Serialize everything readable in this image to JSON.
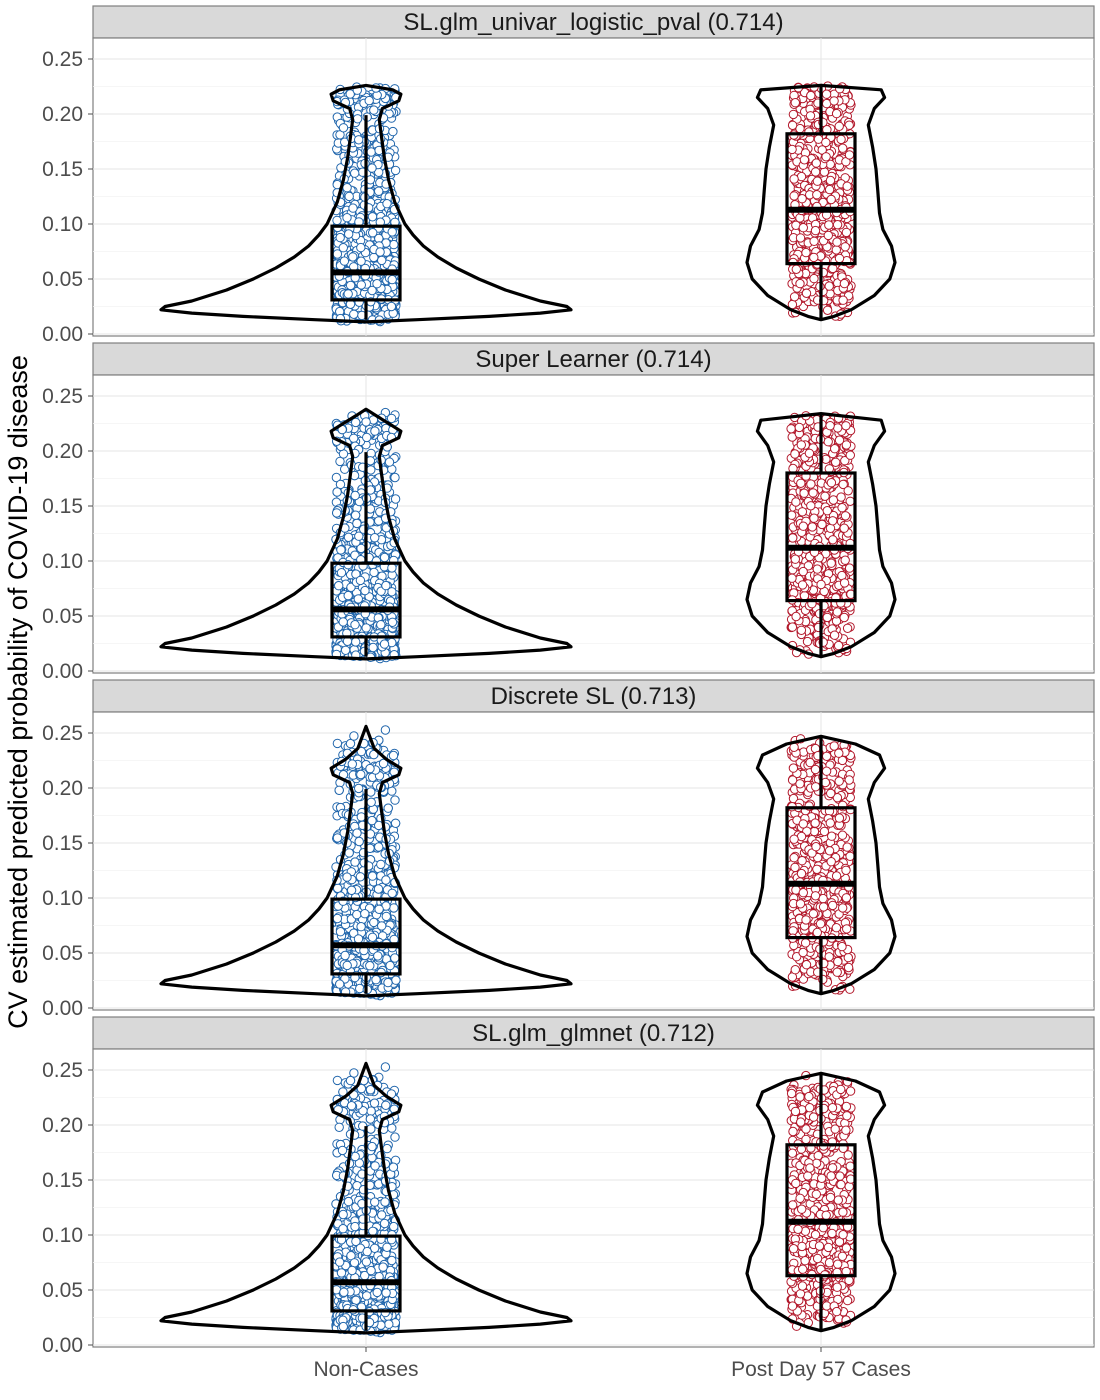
{
  "chart_data": {
    "type": "violin",
    "ylabel": "CV estimated predicted probability of COVID-19 disease",
    "xlabel": "",
    "categories": [
      "Non-Cases",
      "Post Day 57 Cases"
    ],
    "ylim": [
      0.0,
      0.26
    ],
    "yticks": [
      "0.00",
      "0.05",
      "0.10",
      "0.15",
      "0.20",
      "0.25"
    ],
    "grid": true,
    "point_colors": {
      "Non-Cases": "#2166ac",
      "Post Day 57 Cases": "#b2182b"
    },
    "panels": [
      {
        "title": "SL.glm_univar_logistic_pval (0.714)",
        "groups": [
          {
            "category": "Non-Cases",
            "box": {
              "lower": 0.013,
              "q1": 0.031,
              "median": 0.056,
              "q3": 0.098,
              "upper": 0.199
            },
            "range": [
              0.011,
              0.226
            ],
            "violin": [
              [
                0.011,
                0.0
              ],
              [
                0.013,
                0.25
              ],
              [
                0.016,
                0.6
              ],
              [
                0.019,
                0.85
              ],
              [
                0.022,
                1.0
              ],
              [
                0.025,
                0.98
              ],
              [
                0.03,
                0.85
              ],
              [
                0.04,
                0.68
              ],
              [
                0.05,
                0.55
              ],
              [
                0.06,
                0.44
              ],
              [
                0.07,
                0.35
              ],
              [
                0.08,
                0.28
              ],
              [
                0.09,
                0.23
              ],
              [
                0.1,
                0.19
              ],
              [
                0.12,
                0.14
              ],
              [
                0.14,
                0.11
              ],
              [
                0.16,
                0.09
              ],
              [
                0.18,
                0.075
              ],
              [
                0.195,
                0.065
              ],
              [
                0.205,
                0.08
              ],
              [
                0.212,
                0.16
              ],
              [
                0.218,
                0.17
              ],
              [
                0.222,
                0.13
              ],
              [
                0.226,
                0.0
              ]
            ]
          },
          {
            "category": "Post Day 57 Cases",
            "box": {
              "lower": 0.013,
              "q1": 0.064,
              "median": 0.113,
              "q3": 0.182,
              "upper": 0.226
            },
            "range": [
              0.013,
              0.226
            ],
            "violin": [
              [
                0.013,
                0.0
              ],
              [
                0.016,
                0.15
              ],
              [
                0.022,
                0.35
              ],
              [
                0.035,
                0.62
              ],
              [
                0.05,
                0.8
              ],
              [
                0.065,
                0.86
              ],
              [
                0.08,
                0.82
              ],
              [
                0.095,
                0.72
              ],
              [
                0.11,
                0.68
              ],
              [
                0.13,
                0.66
              ],
              [
                0.15,
                0.64
              ],
              [
                0.17,
                0.6
              ],
              [
                0.19,
                0.55
              ],
              [
                0.205,
                0.62
              ],
              [
                0.215,
                0.74
              ],
              [
                0.222,
                0.7
              ],
              [
                0.226,
                0.0
              ]
            ]
          }
        ]
      },
      {
        "title": "Super Learner (0.714)",
        "groups": [
          {
            "category": "Non-Cases",
            "box": {
              "lower": 0.013,
              "q1": 0.031,
              "median": 0.056,
              "q3": 0.098,
              "upper": 0.199
            },
            "range": [
              0.011,
              0.238
            ],
            "violin": [
              [
                0.011,
                0.0
              ],
              [
                0.013,
                0.25
              ],
              [
                0.016,
                0.6
              ],
              [
                0.019,
                0.85
              ],
              [
                0.022,
                1.0
              ],
              [
                0.025,
                0.98
              ],
              [
                0.03,
                0.85
              ],
              [
                0.04,
                0.68
              ],
              [
                0.05,
                0.55
              ],
              [
                0.06,
                0.44
              ],
              [
                0.07,
                0.35
              ],
              [
                0.08,
                0.28
              ],
              [
                0.09,
                0.23
              ],
              [
                0.1,
                0.19
              ],
              [
                0.12,
                0.14
              ],
              [
                0.14,
                0.11
              ],
              [
                0.16,
                0.09
              ],
              [
                0.18,
                0.075
              ],
              [
                0.195,
                0.065
              ],
              [
                0.205,
                0.08
              ],
              [
                0.212,
                0.16
              ],
              [
                0.218,
                0.17
              ],
              [
                0.224,
                0.12
              ],
              [
                0.232,
                0.05
              ],
              [
                0.238,
                0.0
              ]
            ]
          },
          {
            "category": "Post Day 57 Cases",
            "box": {
              "lower": 0.013,
              "q1": 0.064,
              "median": 0.112,
              "q3": 0.18,
              "upper": 0.234
            },
            "range": [
              0.013,
              0.234
            ],
            "violin": [
              [
                0.013,
                0.0
              ],
              [
                0.016,
                0.15
              ],
              [
                0.022,
                0.35
              ],
              [
                0.035,
                0.62
              ],
              [
                0.05,
                0.8
              ],
              [
                0.065,
                0.86
              ],
              [
                0.08,
                0.82
              ],
              [
                0.095,
                0.72
              ],
              [
                0.11,
                0.68
              ],
              [
                0.13,
                0.66
              ],
              [
                0.15,
                0.64
              ],
              [
                0.17,
                0.6
              ],
              [
                0.19,
                0.55
              ],
              [
                0.205,
                0.62
              ],
              [
                0.218,
                0.74
              ],
              [
                0.228,
                0.7
              ],
              [
                0.234,
                0.0
              ]
            ]
          }
        ]
      },
      {
        "title": "Discrete SL (0.713)",
        "groups": [
          {
            "category": "Non-Cases",
            "box": {
              "lower": 0.013,
              "q1": 0.031,
              "median": 0.057,
              "q3": 0.099,
              "upper": 0.199
            },
            "range": [
              0.011,
              0.256
            ],
            "violin": [
              [
                0.011,
                0.0
              ],
              [
                0.013,
                0.25
              ],
              [
                0.016,
                0.6
              ],
              [
                0.019,
                0.85
              ],
              [
                0.022,
                1.0
              ],
              [
                0.025,
                0.98
              ],
              [
                0.03,
                0.85
              ],
              [
                0.04,
                0.68
              ],
              [
                0.05,
                0.55
              ],
              [
                0.06,
                0.44
              ],
              [
                0.07,
                0.35
              ],
              [
                0.08,
                0.28
              ],
              [
                0.09,
                0.23
              ],
              [
                0.1,
                0.19
              ],
              [
                0.12,
                0.14
              ],
              [
                0.14,
                0.11
              ],
              [
                0.16,
                0.09
              ],
              [
                0.18,
                0.075
              ],
              [
                0.195,
                0.065
              ],
              [
                0.205,
                0.08
              ],
              [
                0.212,
                0.16
              ],
              [
                0.218,
                0.17
              ],
              [
                0.226,
                0.1
              ],
              [
                0.236,
                0.04
              ],
              [
                0.246,
                0.02
              ],
              [
                0.256,
                0.0
              ]
            ]
          },
          {
            "category": "Post Day 57 Cases",
            "box": {
              "lower": 0.013,
              "q1": 0.064,
              "median": 0.113,
              "q3": 0.182,
              "upper": 0.247
            },
            "range": [
              0.013,
              0.247
            ],
            "violin": [
              [
                0.013,
                0.0
              ],
              [
                0.016,
                0.15
              ],
              [
                0.022,
                0.35
              ],
              [
                0.035,
                0.62
              ],
              [
                0.05,
                0.8
              ],
              [
                0.065,
                0.86
              ],
              [
                0.08,
                0.82
              ],
              [
                0.095,
                0.72
              ],
              [
                0.11,
                0.68
              ],
              [
                0.13,
                0.66
              ],
              [
                0.15,
                0.64
              ],
              [
                0.17,
                0.6
              ],
              [
                0.19,
                0.55
              ],
              [
                0.205,
                0.62
              ],
              [
                0.218,
                0.74
              ],
              [
                0.23,
                0.68
              ],
              [
                0.24,
                0.4
              ],
              [
                0.247,
                0.0
              ]
            ]
          }
        ]
      },
      {
        "title": "SL.glm_glmnet (0.712)",
        "groups": [
          {
            "category": "Non-Cases",
            "box": {
              "lower": 0.013,
              "q1": 0.031,
              "median": 0.057,
              "q3": 0.099,
              "upper": 0.199
            },
            "range": [
              0.011,
              0.256
            ],
            "violin": [
              [
                0.011,
                0.0
              ],
              [
                0.013,
                0.25
              ],
              [
                0.016,
                0.6
              ],
              [
                0.019,
                0.85
              ],
              [
                0.022,
                1.0
              ],
              [
                0.025,
                0.98
              ],
              [
                0.03,
                0.85
              ],
              [
                0.04,
                0.68
              ],
              [
                0.05,
                0.55
              ],
              [
                0.06,
                0.44
              ],
              [
                0.07,
                0.35
              ],
              [
                0.08,
                0.28
              ],
              [
                0.09,
                0.23
              ],
              [
                0.1,
                0.19
              ],
              [
                0.12,
                0.14
              ],
              [
                0.14,
                0.11
              ],
              [
                0.16,
                0.09
              ],
              [
                0.18,
                0.075
              ],
              [
                0.195,
                0.065
              ],
              [
                0.205,
                0.08
              ],
              [
                0.212,
                0.16
              ],
              [
                0.218,
                0.17
              ],
              [
                0.226,
                0.1
              ],
              [
                0.236,
                0.04
              ],
              [
                0.246,
                0.02
              ],
              [
                0.256,
                0.0
              ]
            ]
          },
          {
            "category": "Post Day 57 Cases",
            "box": {
              "lower": 0.013,
              "q1": 0.063,
              "median": 0.112,
              "q3": 0.182,
              "upper": 0.247
            },
            "range": [
              0.013,
              0.247
            ],
            "violin": [
              [
                0.013,
                0.0
              ],
              [
                0.016,
                0.15
              ],
              [
                0.022,
                0.35
              ],
              [
                0.035,
                0.62
              ],
              [
                0.05,
                0.8
              ],
              [
                0.065,
                0.86
              ],
              [
                0.08,
                0.82
              ],
              [
                0.095,
                0.72
              ],
              [
                0.11,
                0.68
              ],
              [
                0.13,
                0.66
              ],
              [
                0.15,
                0.64
              ],
              [
                0.17,
                0.6
              ],
              [
                0.19,
                0.55
              ],
              [
                0.205,
                0.62
              ],
              [
                0.218,
                0.74
              ],
              [
                0.23,
                0.68
              ],
              [
                0.24,
                0.4
              ],
              [
                0.247,
                0.0
              ]
            ]
          }
        ]
      }
    ]
  }
}
